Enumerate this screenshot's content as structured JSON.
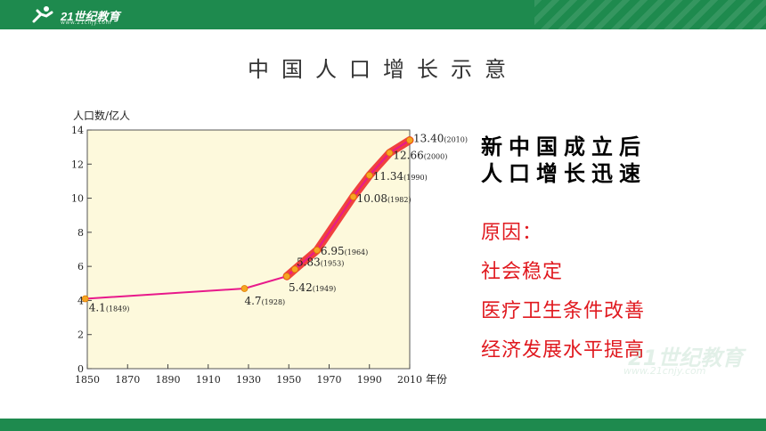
{
  "header": {
    "logo_text": "21世纪教育",
    "logo_sub": "www.21cnjy.com"
  },
  "title": "中国人口增长示意",
  "heading_lines": [
    "新中国成立后",
    "人口增长迅速"
  ],
  "reasons": [
    "原因：",
    "社会稳定",
    "医疗卫生条件改善",
    "经济发展水平提高"
  ],
  "watermark": {
    "text": "21世纪教育",
    "sub": "www.21cnjy.com"
  },
  "colors": {
    "bar": "#1e8a4e",
    "reason": "#e0191f",
    "plot_bg": "#fdf9dc",
    "line": "#e8198b",
    "highlight": "#ee2c2c",
    "point": "#f5a623"
  },
  "chart_data": {
    "type": "line",
    "ylabel": "人口数/亿人",
    "xlabel": "年份",
    "xlim": [
      1850,
      2010
    ],
    "ylim": [
      0,
      14
    ],
    "x_ticks": [
      1850,
      1870,
      1890,
      1910,
      1930,
      1950,
      1970,
      1990,
      2010
    ],
    "y_ticks": [
      0,
      2,
      4,
      6,
      8,
      10,
      12,
      14
    ],
    "grid": false,
    "points": [
      {
        "x": 1849,
        "y": 4.1,
        "label": "4.1",
        "year_label": "(1849)"
      },
      {
        "x": 1928,
        "y": 4.7,
        "label": "4.7",
        "year_label": "(1928)"
      },
      {
        "x": 1949,
        "y": 5.42,
        "label": "5.42",
        "year_label": "(1949)"
      },
      {
        "x": 1953,
        "y": 5.83,
        "label": "5.83",
        "year_label": "(1953)"
      },
      {
        "x": 1964,
        "y": 6.95,
        "label": "6.95",
        "year_label": "(1964)"
      },
      {
        "x": 1982,
        "y": 10.08,
        "label": "10.08",
        "year_label": "(1982)"
      },
      {
        "x": 1990,
        "y": 11.34,
        "label": "11.34",
        "year_label": "(1990)"
      },
      {
        "x": 2000,
        "y": 12.66,
        "label": "12.66",
        "year_label": "(2000)"
      },
      {
        "x": 2010,
        "y": 13.4,
        "label": "13.40",
        "year_label": "(2010)"
      }
    ],
    "highlight_from_x": 1949
  }
}
